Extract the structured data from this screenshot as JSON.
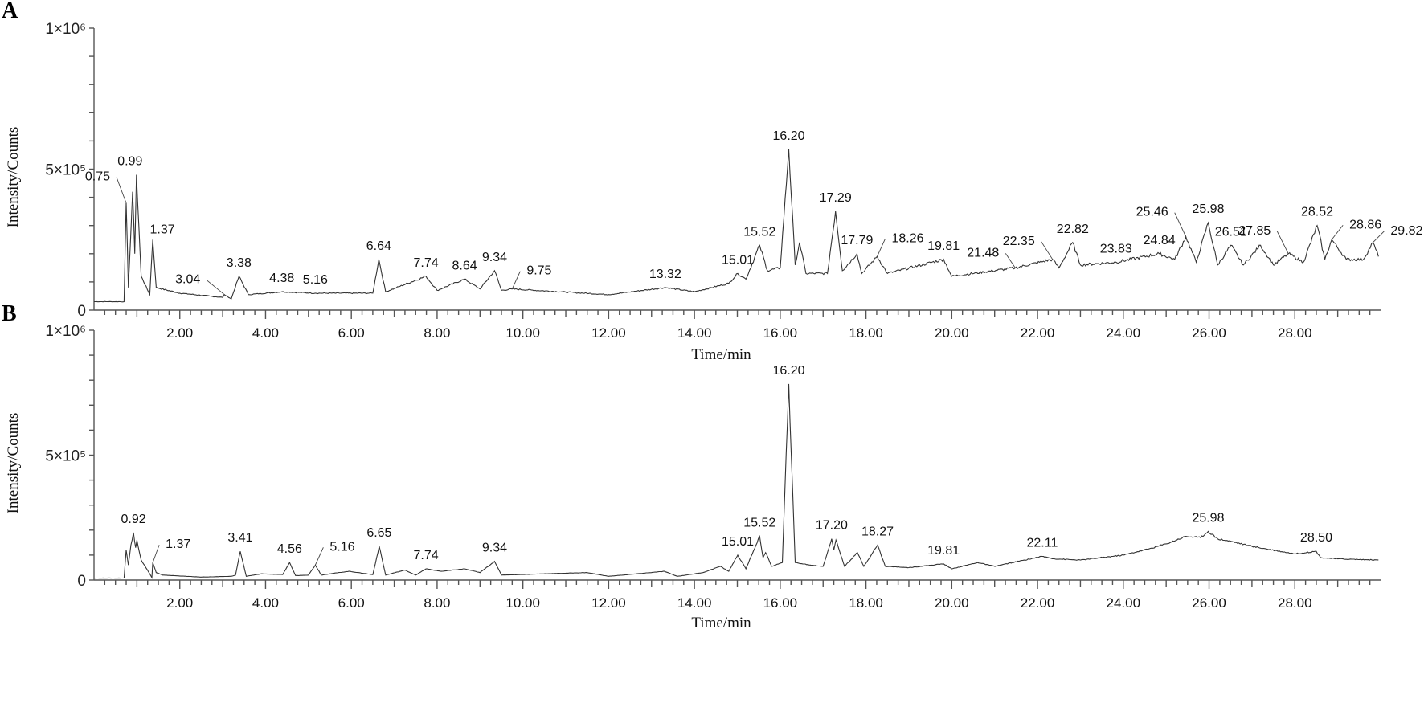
{
  "figure": {
    "panels": [
      "A",
      "B"
    ]
  },
  "chart_data": [
    {
      "type": "line",
      "panel": "A",
      "title": "",
      "xlabel": "Time/min",
      "ylabel": "Intensity/Counts",
      "xlim": [
        0,
        30
      ],
      "ylim": [
        0,
        1000000
      ],
      "x_ticks": [
        "2.00",
        "4.00",
        "6.00",
        "8.00",
        "10.00",
        "12.00",
        "14.00",
        "16.00",
        "18.00",
        "20.00",
        "22.00",
        "24.00",
        "26.00",
        "28.00"
      ],
      "y_ticks": [
        {
          "value": 0,
          "label": "0"
        },
        {
          "value": 500000,
          "label": "5×10⁵"
        },
        {
          "value": 1000000,
          "label": "1×10⁶"
        }
      ],
      "grid": false,
      "legend": null,
      "baseline": [
        [
          0.0,
          30000
        ],
        [
          0.7,
          30000
        ],
        [
          0.75,
          380000
        ],
        [
          0.8,
          80000
        ],
        [
          0.9,
          420000
        ],
        [
          0.95,
          200000
        ],
        [
          0.99,
          480000
        ],
        [
          1.1,
          120000
        ],
        [
          1.3,
          55000
        ],
        [
          1.37,
          250000
        ],
        [
          1.45,
          80000
        ],
        [
          2.0,
          60000
        ],
        [
          3.0,
          45000
        ],
        [
          3.04,
          55000
        ],
        [
          3.2,
          40000
        ],
        [
          3.38,
          120000
        ],
        [
          3.6,
          55000
        ],
        [
          4.38,
          65000
        ],
        [
          5.16,
          60000
        ],
        [
          6.5,
          60000
        ],
        [
          6.64,
          180000
        ],
        [
          6.8,
          65000
        ],
        [
          7.74,
          120000
        ],
        [
          8.0,
          70000
        ],
        [
          8.64,
          110000
        ],
        [
          9.0,
          75000
        ],
        [
          9.34,
          140000
        ],
        [
          9.5,
          70000
        ],
        [
          9.75,
          75000
        ],
        [
          12.0,
          55000
        ],
        [
          13.32,
          80000
        ],
        [
          14.0,
          65000
        ],
        [
          14.8,
          95000
        ],
        [
          15.01,
          130000
        ],
        [
          15.2,
          110000
        ],
        [
          15.52,
          230000
        ],
        [
          15.7,
          140000
        ],
        [
          16.0,
          150000
        ],
        [
          16.2,
          570000
        ],
        [
          16.35,
          160000
        ],
        [
          16.45,
          240000
        ],
        [
          16.6,
          130000
        ],
        [
          17.1,
          130000
        ],
        [
          17.29,
          350000
        ],
        [
          17.45,
          140000
        ],
        [
          17.79,
          200000
        ],
        [
          17.9,
          130000
        ],
        [
          18.26,
          190000
        ],
        [
          18.5,
          130000
        ],
        [
          19.81,
          180000
        ],
        [
          20.0,
          120000
        ],
        [
          21.48,
          150000
        ],
        [
          22.35,
          180000
        ],
        [
          22.5,
          150000
        ],
        [
          22.82,
          240000
        ],
        [
          23.0,
          160000
        ],
        [
          23.83,
          170000
        ],
        [
          24.84,
          200000
        ],
        [
          25.2,
          180000
        ],
        [
          25.46,
          260000
        ],
        [
          25.7,
          170000
        ],
        [
          25.98,
          310000
        ],
        [
          26.2,
          160000
        ],
        [
          26.51,
          230000
        ],
        [
          26.8,
          160000
        ],
        [
          27.2,
          230000
        ],
        [
          27.5,
          160000
        ],
        [
          27.85,
          200000
        ],
        [
          28.2,
          170000
        ],
        [
          28.52,
          300000
        ],
        [
          28.7,
          180000
        ],
        [
          28.86,
          250000
        ],
        [
          29.2,
          180000
        ],
        [
          29.6,
          180000
        ],
        [
          29.82,
          240000
        ],
        [
          29.95,
          190000
        ]
      ],
      "peaks": [
        {
          "rt": 0.75,
          "label": "0.75",
          "intensity": 380000
        },
        {
          "rt": 0.99,
          "label": "0.99",
          "intensity": 480000
        },
        {
          "rt": 1.37,
          "label": "1.37",
          "intensity": 250000
        },
        {
          "rt": 3.04,
          "label": "3.04",
          "intensity": 55000
        },
        {
          "rt": 3.38,
          "label": "3.38",
          "intensity": 120000
        },
        {
          "rt": 4.38,
          "label": "4.38",
          "intensity": 65000
        },
        {
          "rt": 5.16,
          "label": "5.16",
          "intensity": 60000
        },
        {
          "rt": 6.64,
          "label": "6.64",
          "intensity": 180000
        },
        {
          "rt": 7.74,
          "label": "7.74",
          "intensity": 120000
        },
        {
          "rt": 8.64,
          "label": "8.64",
          "intensity": 110000
        },
        {
          "rt": 9.34,
          "label": "9.34",
          "intensity": 140000
        },
        {
          "rt": 9.75,
          "label": "9.75",
          "intensity": 75000
        },
        {
          "rt": 13.32,
          "label": "13.32",
          "intensity": 80000
        },
        {
          "rt": 15.01,
          "label": "15.01",
          "intensity": 130000
        },
        {
          "rt": 15.52,
          "label": "15.52",
          "intensity": 230000
        },
        {
          "rt": 16.2,
          "label": "16.20",
          "intensity": 570000
        },
        {
          "rt": 17.29,
          "label": "17.29",
          "intensity": 350000
        },
        {
          "rt": 17.79,
          "label": "17.79",
          "intensity": 200000
        },
        {
          "rt": 18.26,
          "label": "18.26",
          "intensity": 190000
        },
        {
          "rt": 19.81,
          "label": "19.81",
          "intensity": 180000
        },
        {
          "rt": 21.48,
          "label": "21.48",
          "intensity": 150000
        },
        {
          "rt": 22.35,
          "label": "22.35",
          "intensity": 180000
        },
        {
          "rt": 22.82,
          "label": "22.82",
          "intensity": 240000
        },
        {
          "rt": 23.83,
          "label": "23.83",
          "intensity": 170000
        },
        {
          "rt": 24.84,
          "label": "24.84",
          "intensity": 200000
        },
        {
          "rt": 25.46,
          "label": "25.46",
          "intensity": 260000
        },
        {
          "rt": 25.98,
          "label": "25.98",
          "intensity": 310000
        },
        {
          "rt": 26.51,
          "label": "26.51",
          "intensity": 230000
        },
        {
          "rt": 27.85,
          "label": "27.85",
          "intensity": 200000
        },
        {
          "rt": 28.52,
          "label": "28.52",
          "intensity": 300000
        },
        {
          "rt": 28.86,
          "label": "28.86",
          "intensity": 250000
        },
        {
          "rt": 29.82,
          "label": "29.82",
          "intensity": 240000
        }
      ]
    },
    {
      "type": "line",
      "panel": "B",
      "title": "",
      "xlabel": "Time/min",
      "ylabel": "Intensity/Counts",
      "xlim": [
        0,
        30
      ],
      "ylim": [
        0,
        1000000
      ],
      "x_ticks": [
        "2.00",
        "4.00",
        "6.00",
        "8.00",
        "10.00",
        "12.00",
        "14.00",
        "16.00",
        "18.00",
        "20.00",
        "22.00",
        "24.00",
        "26.00",
        "28.00"
      ],
      "y_ticks": [
        {
          "value": 0,
          "label": "0"
        },
        {
          "value": 500000,
          "label": "5×10⁵"
        },
        {
          "value": 1000000,
          "label": "1×10⁶"
        }
      ],
      "grid": false,
      "legend": null,
      "baseline": [
        [
          0.0,
          8000
        ],
        [
          0.7,
          8000
        ],
        [
          0.75,
          120000
        ],
        [
          0.8,
          60000
        ],
        [
          0.86,
          140000
        ],
        [
          0.92,
          190000
        ],
        [
          0.97,
          130000
        ],
        [
          1.0,
          160000
        ],
        [
          1.1,
          80000
        ],
        [
          1.3,
          25000
        ],
        [
          1.35,
          10000
        ],
        [
          1.37,
          70000
        ],
        [
          1.45,
          30000
        ],
        [
          1.6,
          20000
        ],
        [
          2.5,
          12000
        ],
        [
          3.2,
          15000
        ],
        [
          3.3,
          20000
        ],
        [
          3.41,
          115000
        ],
        [
          3.55,
          15000
        ],
        [
          3.9,
          25000
        ],
        [
          4.4,
          22000
        ],
        [
          4.56,
          70000
        ],
        [
          4.7,
          18000
        ],
        [
          5.0,
          20000
        ],
        [
          5.16,
          60000
        ],
        [
          5.3,
          20000
        ],
        [
          5.5,
          25000
        ],
        [
          5.94,
          35000
        ],
        [
          6.5,
          22000
        ],
        [
          6.65,
          135000
        ],
        [
          6.8,
          20000
        ],
        [
          7.25,
          40000
        ],
        [
          7.5,
          20000
        ],
        [
          7.74,
          45000
        ],
        [
          8.1,
          35000
        ],
        [
          8.64,
          45000
        ],
        [
          9.0,
          30000
        ],
        [
          9.34,
          75000
        ],
        [
          9.5,
          20000
        ],
        [
          11.5,
          30000
        ],
        [
          12.0,
          15000
        ],
        [
          13.3,
          35000
        ],
        [
          13.6,
          15000
        ],
        [
          14.2,
          30000
        ],
        [
          14.6,
          55000
        ],
        [
          14.8,
          35000
        ],
        [
          15.01,
          100000
        ],
        [
          15.2,
          45000
        ],
        [
          15.52,
          175000
        ],
        [
          15.6,
          90000
        ],
        [
          15.66,
          110000
        ],
        [
          15.8,
          55000
        ],
        [
          16.05,
          70000
        ],
        [
          16.2,
          785000
        ],
        [
          16.35,
          70000
        ],
        [
          16.7,
          60000
        ],
        [
          17.0,
          55000
        ],
        [
          17.2,
          165000
        ],
        [
          17.25,
          120000
        ],
        [
          17.3,
          160000
        ],
        [
          17.5,
          55000
        ],
        [
          17.8,
          110000
        ],
        [
          17.95,
          55000
        ],
        [
          18.27,
          140000
        ],
        [
          18.45,
          55000
        ],
        [
          19.0,
          50000
        ],
        [
          19.81,
          65000
        ],
        [
          20.0,
          45000
        ],
        [
          20.6,
          70000
        ],
        [
          21.0,
          55000
        ],
        [
          22.11,
          95000
        ],
        [
          22.4,
          85000
        ],
        [
          23.0,
          80000
        ],
        [
          24.0,
          100000
        ],
        [
          24.6,
          125000
        ],
        [
          25.0,
          145000
        ],
        [
          25.46,
          175000
        ],
        [
          25.8,
          170000
        ],
        [
          25.98,
          195000
        ],
        [
          26.2,
          165000
        ],
        [
          26.51,
          155000
        ],
        [
          27.0,
          135000
        ],
        [
          28.0,
          105000
        ],
        [
          28.5,
          115000
        ],
        [
          28.6,
          90000
        ],
        [
          29.0,
          85000
        ],
        [
          29.95,
          80000
        ]
      ],
      "peaks": [
        {
          "rt": 0.92,
          "label": "0.92",
          "intensity": 190000
        },
        {
          "rt": 1.37,
          "label": "1.37",
          "intensity": 70000
        },
        {
          "rt": 3.41,
          "label": "3.41",
          "intensity": 115000
        },
        {
          "rt": 4.56,
          "label": "4.56",
          "intensity": 70000
        },
        {
          "rt": 5.16,
          "label": "5.16",
          "intensity": 60000
        },
        {
          "rt": 6.65,
          "label": "6.65",
          "intensity": 135000
        },
        {
          "rt": 7.74,
          "label": "7.74",
          "intensity": 45000
        },
        {
          "rt": 9.34,
          "label": "9.34",
          "intensity": 75000
        },
        {
          "rt": 15.01,
          "label": "15.01",
          "intensity": 100000
        },
        {
          "rt": 15.52,
          "label": "15.52",
          "intensity": 175000
        },
        {
          "rt": 16.2,
          "label": "16.20",
          "intensity": 785000
        },
        {
          "rt": 17.2,
          "label": "17.20",
          "intensity": 165000
        },
        {
          "rt": 18.27,
          "label": "18.27",
          "intensity": 140000
        },
        {
          "rt": 19.81,
          "label": "19.81",
          "intensity": 65000
        },
        {
          "rt": 22.11,
          "label": "22.11",
          "intensity": 95000
        },
        {
          "rt": 25.98,
          "label": "25.98",
          "intensity": 195000
        },
        {
          "rt": 28.5,
          "label": "28.50",
          "intensity": 115000
        }
      ]
    }
  ]
}
